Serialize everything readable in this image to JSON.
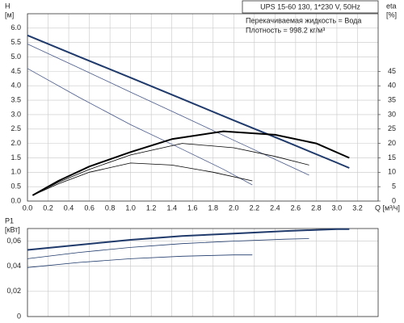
{
  "chart_data": [
    {
      "type": "line",
      "box_title": "UPS 15-60 130, 1*230 V, 50Hz",
      "notes": [
        "Перекачиваемая жидкость = Вода",
        "Плотность = 998.2 кг/м³"
      ],
      "ylabel": "H",
      "yunit": "[м]",
      "y2label": "eta",
      "y2unit": "[%]",
      "xlabel": "Q [м³/ч]",
      "xlim": [
        0,
        3.4
      ],
      "xticks": [
        {
          "value": 0,
          "label": "0.0"
        },
        0.2,
        0.4,
        0.6,
        0.8,
        {
          "value": 1,
          "label": "1.0"
        },
        1.2,
        1.4,
        1.6,
        1.8,
        {
          "value": 2,
          "label": "2.0"
        },
        2.2,
        2.4,
        2.6,
        2.8,
        {
          "value": 3,
          "label": "3.0"
        },
        3.2
      ],
      "ylim": [
        0,
        6.5
      ],
      "yticks": [
        {
          "value": 0,
          "label": "0.0"
        },
        0.5,
        {
          "value": 1,
          "label": "1.0"
        },
        1.5,
        {
          "value": 2,
          "label": "2.0"
        },
        2.5,
        {
          "value": 3,
          "label": "3.0"
        },
        3.5,
        {
          "value": 4,
          "label": "4.0"
        },
        4.5,
        {
          "value": 5,
          "label": "5.0"
        },
        5.5,
        {
          "value": 6,
          "label": "6.0"
        }
      ],
      "y2lim": [
        0,
        65
      ],
      "y2ticks": [
        0,
        5,
        10,
        15,
        20,
        25,
        30,
        35,
        40,
        45
      ],
      "grid": true,
      "series": [
        {
          "color": "#1f3a6b",
          "linewidth": 2,
          "x": [
            0,
            0.5,
            1,
            1.5,
            2,
            2.5,
            3,
            3.12
          ],
          "values": [
            5.75,
            5.01,
            4.28,
            3.54,
            2.8,
            2.07,
            1.33,
            1.15
          ]
        },
        {
          "color": "#4a5a8a",
          "linewidth": 0.8,
          "x": [
            0,
            0.5,
            1,
            1.5,
            2,
            2.5,
            2.73
          ],
          "values": [
            5.45,
            4.62,
            3.78,
            2.95,
            2.11,
            1.28,
            0.9
          ]
        },
        {
          "color": "#4a5a8a",
          "linewidth": 0.8,
          "x": [
            0,
            0.5,
            1,
            1.5,
            1.9,
            2.18
          ],
          "values": [
            4.6,
            3.6,
            2.65,
            1.8,
            1.1,
            0.56
          ]
        },
        {
          "color": "#000000",
          "linewidth": 2,
          "axis": "y2",
          "x": [
            0.05,
            0.3,
            0.6,
            1,
            1.4,
            1.9,
            2.4,
            2.8,
            3.12
          ],
          "values": [
            2,
            7,
            12,
            17,
            21.5,
            24.2,
            23,
            20,
            15
          ]
        },
        {
          "color": "#000000",
          "linewidth": 0.8,
          "axis": "y2",
          "x": [
            0.05,
            0.3,
            0.6,
            1,
            1.5,
            2,
            2.4,
            2.73
          ],
          "values": [
            2,
            6.5,
            11,
            16,
            20,
            18.5,
            15.5,
            12.5
          ]
        },
        {
          "color": "#000000",
          "linewidth": 0.8,
          "axis": "y2",
          "x": [
            0.05,
            0.3,
            0.6,
            1,
            1.4,
            1.8,
            2.18
          ],
          "values": [
            2,
            6,
            10,
            13.2,
            12.5,
            10,
            7
          ]
        }
      ]
    },
    {
      "type": "line",
      "ylabel": "P1",
      "yunit": "[кВт]",
      "xlim": [
        0,
        3.4
      ],
      "xticks": [
        0,
        0.2,
        0.4,
        0.6,
        0.8,
        1,
        1.2,
        1.4,
        1.6,
        1.8,
        2,
        2.2,
        2.4,
        2.6,
        2.8,
        3,
        3.2
      ],
      "ylim": [
        0,
        0.07
      ],
      "yticks": [
        0,
        {
          "value": 0.02,
          "label": "0,02"
        },
        {
          "value": 0.04,
          "label": "0,04"
        },
        {
          "value": 0.06,
          "label": "0,06"
        }
      ],
      "grid": true,
      "series": [
        {
          "color": "#1f3a6b",
          "linewidth": 2,
          "x": [
            0,
            0.5,
            1,
            1.5,
            2,
            2.5,
            3,
            3.12
          ],
          "values": [
            0.053,
            0.057,
            0.061,
            0.064,
            0.066,
            0.068,
            0.0695,
            0.0695
          ]
        },
        {
          "color": "#1f3a6b",
          "linewidth": 0.8,
          "x": [
            0,
            0.5,
            1,
            1.5,
            2,
            2.5,
            2.73
          ],
          "values": [
            0.046,
            0.051,
            0.055,
            0.058,
            0.06,
            0.0615,
            0.062
          ]
        },
        {
          "color": "#1f3a6b",
          "linewidth": 0.8,
          "x": [
            0,
            0.5,
            1,
            1.5,
            2,
            2.18
          ],
          "values": [
            0.039,
            0.043,
            0.046,
            0.048,
            0.049,
            0.049
          ]
        }
      ]
    }
  ]
}
